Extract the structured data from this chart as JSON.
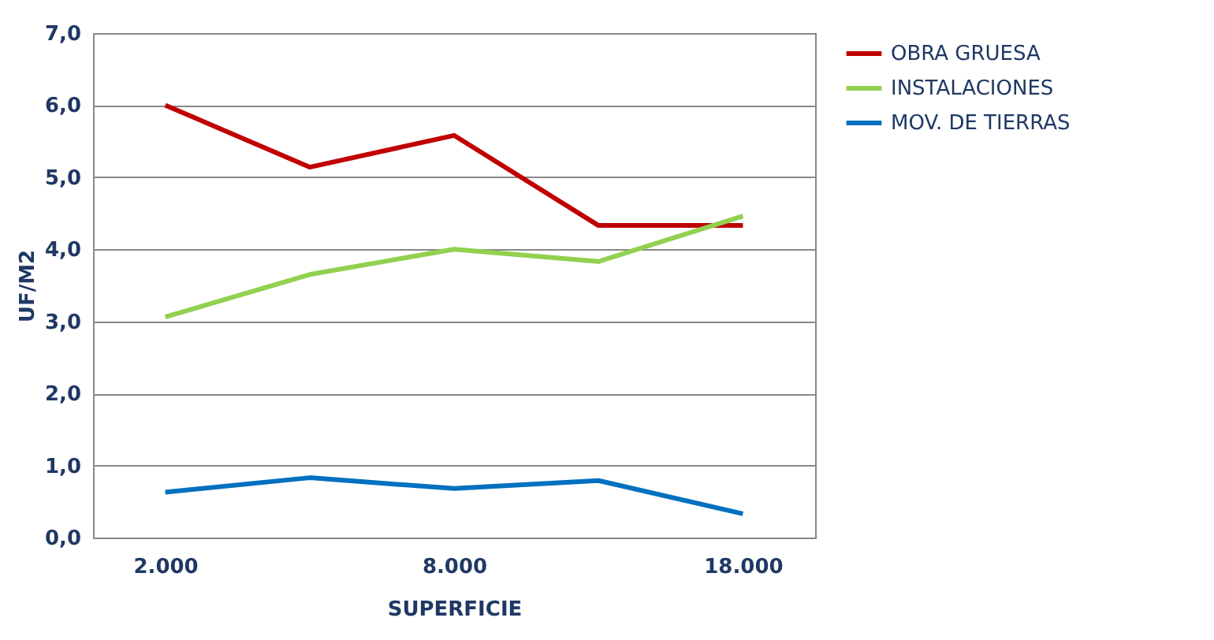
{
  "chart_data": {
    "type": "line",
    "xlabel": "SUPERFICIE",
    "ylabel": "UF/M2",
    "categories": [
      "2.000",
      null,
      "8.000",
      null,
      "18.000"
    ],
    "series": [
      {
        "name": "OBRA GRUESA",
        "color": "#c00000",
        "values": [
          6.0,
          5.14,
          5.58,
          4.33,
          4.33
        ]
      },
      {
        "name": "INSTALACIONES",
        "color": "#92d050",
        "values": [
          3.06,
          3.65,
          4.0,
          3.83,
          4.46
        ]
      },
      {
        "name": "MOV. DE TIERRAS",
        "color": "#0070c0",
        "values": [
          0.63,
          0.83,
          0.68,
          0.79,
          0.33
        ]
      }
    ],
    "ylim": [
      0,
      7
    ],
    "yticks": [
      {
        "value": 0,
        "label": "0,0"
      },
      {
        "value": 1,
        "label": "1,0"
      },
      {
        "value": 2,
        "label": "2,0"
      },
      {
        "value": 3,
        "label": "3,0"
      },
      {
        "value": 4,
        "label": "4,0"
      },
      {
        "value": 5,
        "label": "5,0"
      },
      {
        "value": 6,
        "label": "6,0"
      },
      {
        "value": 7,
        "label": "7,0"
      }
    ],
    "grid": "y",
    "legend": "right",
    "marker": "none",
    "line_style": "solid"
  }
}
